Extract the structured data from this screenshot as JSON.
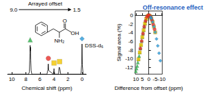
{
  "chart_data": [
    {
      "type": "line",
      "xlabel": "Chemical shift (ppm)",
      "xlim": [
        10.6,
        -0.6
      ],
      "xticks": [
        10,
        8,
        6,
        4,
        2,
        0
      ],
      "ylim": [
        0,
        1.3
      ],
      "tick_labels": "x",
      "grid": false,
      "series": [
        {
          "type": "line",
          "color": "#000000",
          "x": [
            10.6,
            7.6,
            7.5,
            7.45,
            7.42,
            7.39,
            7.36,
            7.33,
            7.3,
            7.25,
            7.15,
            5.0,
            4.85,
            4.8,
            4.75,
            4.1,
            4.02,
            3.99,
            3.96,
            3.9,
            3.35,
            3.28,
            3.24,
            3.18,
            3.14,
            3.05,
            0.15,
            0.05,
            0,
            -0.05,
            -0.15,
            -0.6
          ],
          "values": [
            0,
            0,
            0.05,
            0.3,
            0.45,
            0.62,
            0.5,
            0.58,
            0.3,
            0.08,
            0,
            0,
            0.1,
            0.22,
            0.08,
            0,
            0.08,
            0.12,
            0.08,
            0,
            0,
            0.12,
            0.15,
            0.13,
            0.1,
            0,
            0,
            0.2,
            0.65,
            0.2,
            0,
            0
          ]
        },
        {
          "type": "scatter",
          "marker": "triangle",
          "color": "#2db34a",
          "x": [
            7.38
          ],
          "values": [
            0.74
          ]
        },
        {
          "type": "scatter",
          "marker": "circle",
          "color": "#e8302a",
          "x": [
            4.8
          ],
          "values": [
            0.34
          ]
        },
        {
          "type": "scatter",
          "marker": "square",
          "color": "#f2c500",
          "x": [
            3.99,
            3.2
          ],
          "values": [
            0.24,
            0.27
          ]
        },
        {
          "type": "scatter",
          "marker": "diamond",
          "color": "#2a9ad8",
          "x": [
            0
          ],
          "values": [
            0.76
          ]
        }
      ],
      "annotations": [
        {
          "text": "DSS-d₆",
          "x": -0.4,
          "y": 0.62
        }
      ],
      "arrow": {
        "text": "Arrayed offset",
        "from": {
          "value": 9,
          "label": "9.0"
        },
        "to": {
          "value": 1.5,
          "label": "1.5"
        }
      },
      "structure_labels": [
        "O",
        "OH",
        "NH₂"
      ]
    },
    {
      "type": "scatter",
      "title": "Off-resonance effect",
      "xlabel": "Difference from offset (ppm)",
      "ylabel": "Signal area (%)",
      "xlim": [
        10.5,
        -10.5
      ],
      "xticks": [
        10,
        5,
        0,
        -5,
        -10
      ],
      "ylim": [
        -13.5,
        1
      ],
      "yticks": [
        0,
        -2,
        -4,
        -6,
        -8,
        -10,
        -12
      ],
      "grid": false,
      "series": [
        {
          "marker": "triangle",
          "color": "#2db34a",
          "x": [
            10,
            9.5,
            9,
            8.5,
            8,
            7.5,
            7,
            6.5,
            6,
            5.5,
            5,
            4.5,
            4,
            3.5,
            3,
            2.5,
            2
          ],
          "values": [
            -12.8,
            -12.2,
            -11.6,
            -10.8,
            -10.1,
            -9.3,
            -8.5,
            -7.6,
            -6.8,
            -5.9,
            -5.0,
            -4.2,
            -3.4,
            -2.6,
            -1.9,
            -1.3,
            -0.8
          ]
        },
        {
          "marker": "square",
          "color": "#f2c500",
          "x": [
            8,
            7,
            6,
            5,
            4,
            3,
            2,
            1,
            0,
            -1,
            -2,
            -3,
            -4,
            -5
          ],
          "values": [
            -10.1,
            -8.5,
            -6.8,
            -5.0,
            -3.4,
            -1.9,
            -0.8,
            -0.2,
            0,
            -0.2,
            -0.7,
            -1.5,
            -2.6,
            -3.9
          ]
        },
        {
          "marker": "circle",
          "color": "#e8302a",
          "x": [
            6.5,
            5.5,
            4.5,
            3.5,
            2.5,
            1.5,
            0.5,
            -0.5,
            -1.5,
            -2.5,
            -3.5,
            -4.5
          ],
          "values": [
            -7.6,
            -5.9,
            -4.2,
            -2.6,
            -1.3,
            -0.4,
            0,
            0,
            -0.4,
            -1.1,
            -2.1,
            -3.2
          ]
        },
        {
          "marker": "diamond",
          "color": "#2a9ad8",
          "x": [
            -1.5,
            -2,
            -3,
            -4,
            -5,
            -6,
            -7,
            -8,
            -9
          ],
          "values": [
            -0.4,
            -0.7,
            -1.5,
            -2.6,
            -3.9,
            -5.4,
            -7.0,
            -8.7,
            -10.4
          ]
        }
      ]
    }
  ]
}
